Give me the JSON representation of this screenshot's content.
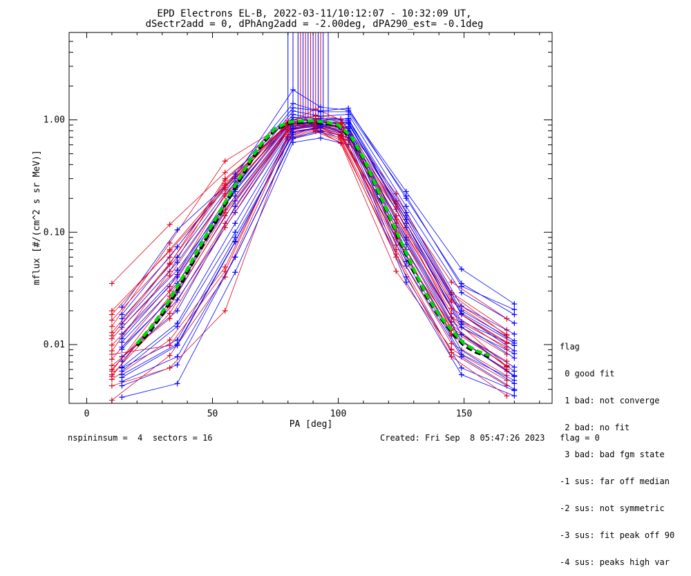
{
  "chart_data": {
    "type": "line",
    "title_line1": "EPD Electrons EL-B, 2022-03-11/10:12:07 - 10:32:09 UT,",
    "title_line2": "dSectr2add = 0, dPhAng2add = -2.00deg, dPA290_est=  -0.1deg",
    "xlabel": "PA [deg]",
    "ylabel": "mflux [#/(cm^2 s sr MeV)]",
    "xlim": [
      -7,
      185
    ],
    "ylim": [
      0.003,
      6.0
    ],
    "yscale": "log",
    "x_ticks": [
      0,
      50,
      100,
      150
    ],
    "x_tick_labels": [
      "0",
      "50",
      "100",
      "150"
    ],
    "y_ticks": [
      0.01,
      0.1,
      1.0
    ],
    "y_tick_labels": [
      "0.01",
      "0.10",
      "1.00"
    ],
    "colors": {
      "red": "#e0001c",
      "blue": "#0000ff",
      "green": "#00dd00",
      "black": "#000000"
    },
    "red_x": [
      10,
      33,
      55,
      80,
      91,
      101,
      123,
      145,
      167
    ],
    "blue_x": [
      14,
      36,
      59,
      82,
      93,
      104,
      127,
      149,
      170
    ],
    "red_series": [
      [
        0.0088,
        0.045,
        0.29,
        0.92,
        0.95,
        0.93,
        0.16,
        0.0175,
        0.0095
      ],
      [
        0.0054,
        0.019,
        0.12,
        0.83,
        0.92,
        0.77,
        0.077,
        0.015,
        0.0063
      ],
      [
        0.0145,
        0.08,
        0.43,
        0.95,
        1.02,
        0.89,
        0.18,
        0.028,
        0.012
      ],
      [
        0.0049,
        0.011,
        0.049,
        0.71,
        0.83,
        0.62,
        0.045,
        0.0091,
        0.0048
      ],
      [
        0.012,
        0.052,
        0.3,
        0.88,
        0.96,
        0.79,
        0.16,
        0.021,
        0.0105
      ],
      [
        0.0058,
        0.027,
        0.16,
        0.83,
        0.88,
        0.72,
        0.11,
        0.0175,
        0.0064
      ],
      [
        0.035,
        0.117,
        0.34,
        0.98,
        1.1,
        1.02,
        0.22,
        0.029,
        0.0135
      ],
      [
        0.0043,
        0.0062,
        0.02,
        0.66,
        0.79,
        0.63,
        0.064,
        0.0085,
        0.0043
      ],
      [
        0.0099,
        0.033,
        0.22,
        0.89,
        0.92,
        0.86,
        0.12,
        0.016,
        0.0082
      ],
      [
        0.0074,
        0.03,
        0.18,
        0.86,
        0.94,
        0.78,
        0.098,
        0.014,
        0.0071
      ],
      [
        0.0165,
        0.06,
        0.27,
        0.91,
        1.03,
        0.92,
        0.14,
        0.024,
        0.0115
      ],
      [
        0.0065,
        0.017,
        0.11,
        0.79,
        0.84,
        0.73,
        0.09,
        0.012,
        0.006
      ],
      [
        0.02,
        0.068,
        0.24,
        0.93,
        1.25,
        1.0,
        0.19,
        0.036,
        0.017
      ],
      [
        0.0032,
        0.008,
        0.04,
        0.69,
        0.81,
        0.66,
        0.06,
        0.0078,
        0.0035
      ],
      [
        0.0113,
        0.041,
        0.21,
        0.89,
        0.9,
        0.85,
        0.14,
        0.019,
        0.0091
      ],
      [
        0.0052,
        0.024,
        0.15,
        0.82,
        0.9,
        0.71,
        0.087,
        0.0125,
        0.0058
      ],
      [
        0.0128,
        0.053,
        0.25,
        0.91,
        0.98,
        0.87,
        0.13,
        0.021,
        0.0102
      ],
      [
        0.0082,
        0.0098,
        0.045,
        0.74,
        0.86,
        0.68,
        0.07,
        0.0102,
        0.0053
      ],
      [
        0.0185,
        0.07,
        0.26,
        0.94,
        1.08,
        0.95,
        0.17,
        0.025,
        0.0123
      ],
      [
        0.006,
        0.022,
        0.14,
        0.8,
        0.89,
        0.74,
        0.1,
        0.0135,
        0.0065
      ]
    ],
    "blue_series": [
      [
        0.0091,
        0.03,
        0.25,
        1.12,
        1.0,
        1.03,
        0.12,
        0.016,
        0.0098
      ],
      [
        0.0062,
        0.011,
        0.09,
        0.74,
        0.89,
        0.79,
        0.07,
        0.0108,
        0.0052
      ],
      [
        0.017,
        0.06,
        0.3,
        1.28,
        1.2,
        1.27,
        0.2,
        0.035,
        0.0185
      ],
      [
        0.0043,
        0.0066,
        0.06,
        0.68,
        0.78,
        0.66,
        0.04,
        0.0062,
        0.0039
      ],
      [
        0.0124,
        0.042,
        0.26,
        1.05,
        0.97,
        0.94,
        0.13,
        0.019,
        0.0103
      ],
      [
        0.0071,
        0.025,
        0.15,
        0.87,
        0.92,
        0.84,
        0.085,
        0.0123,
        0.0063
      ],
      [
        0.0215,
        0.105,
        0.31,
        1.85,
        1.3,
        1.22,
        0.23,
        0.047,
        0.023
      ],
      [
        0.0034,
        0.0045,
        0.044,
        0.63,
        0.69,
        0.6,
        0.036,
        0.0054,
        0.0035
      ],
      [
        0.0105,
        0.035,
        0.21,
        0.95,
        0.94,
        0.92,
        0.13,
        0.0185,
        0.0088
      ],
      [
        0.0078,
        0.02,
        0.17,
        0.92,
        0.91,
        0.87,
        0.11,
        0.0152,
        0.0076
      ],
      [
        0.0153,
        0.054,
        0.28,
        1.2,
        1.08,
        1.12,
        0.17,
        0.029,
        0.0155
      ],
      [
        0.0054,
        0.0101,
        0.083,
        0.77,
        0.85,
        0.73,
        0.063,
        0.0089,
        0.0045
      ],
      [
        0.0142,
        0.046,
        0.23,
        1.05,
        1.03,
        1.02,
        0.15,
        0.022,
        0.0124
      ],
      [
        0.0047,
        0.0078,
        0.06,
        0.7,
        0.8,
        0.7,
        0.05,
        0.0078,
        0.004
      ],
      [
        0.0095,
        0.029,
        0.19,
        0.92,
        0.95,
        0.96,
        0.12,
        0.0142,
        0.0083
      ],
      [
        0.0063,
        0.0155,
        0.12,
        0.85,
        0.91,
        0.85,
        0.09,
        0.0123,
        0.0058
      ],
      [
        0.0185,
        0.074,
        0.33,
        1.4,
        1.18,
        1.18,
        0.21,
        0.033,
        0.0205
      ],
      [
        0.0051,
        0.0098,
        0.082,
        0.78,
        0.86,
        0.77,
        0.055,
        0.0082,
        0.0048
      ],
      [
        0.0113,
        0.04,
        0.24,
        1.0,
        1.0,
        0.99,
        0.14,
        0.02,
        0.0108
      ],
      [
        0.0058,
        0.0145,
        0.1,
        0.83,
        0.88,
        0.8,
        0.078,
        0.0108,
        0.0053
      ]
    ],
    "blue_spike_x": [
      80,
      82,
      84,
      86,
      88,
      90,
      92,
      94,
      96
    ],
    "red_spike_x": [
      85,
      87,
      89,
      91,
      93
    ],
    "spike_base": 1.05,
    "fit_black": {
      "x": [
        20,
        25,
        30,
        35,
        40,
        45,
        50,
        55,
        60,
        65,
        70,
        75,
        80,
        85,
        90,
        95,
        100,
        105,
        110,
        115,
        120,
        125,
        130,
        135,
        140,
        145,
        150,
        155,
        160
      ],
      "y": [
        0.0098,
        0.013,
        0.0185,
        0.028,
        0.044,
        0.07,
        0.11,
        0.175,
        0.27,
        0.42,
        0.62,
        0.82,
        0.93,
        0.96,
        0.96,
        0.94,
        0.88,
        0.7,
        0.44,
        0.25,
        0.14,
        0.078,
        0.045,
        0.027,
        0.018,
        0.013,
        0.0098,
        0.0085,
        0.0078
      ]
    },
    "fit_green": {
      "x": [
        20,
        25,
        30,
        35,
        40,
        45,
        50,
        55,
        60,
        65,
        70,
        75,
        80,
        85,
        90,
        95,
        100,
        105,
        110,
        115,
        120,
        125,
        130,
        135,
        140,
        145,
        150,
        155,
        160
      ],
      "y": [
        0.0102,
        0.0138,
        0.0195,
        0.03,
        0.047,
        0.075,
        0.118,
        0.185,
        0.285,
        0.44,
        0.64,
        0.84,
        0.95,
        0.98,
        0.98,
        0.96,
        0.9,
        0.72,
        0.46,
        0.26,
        0.145,
        0.082,
        0.047,
        0.028,
        0.0185,
        0.0135,
        0.0102,
        0.0088,
        0.008
      ]
    }
  },
  "legend": {
    "title": "flag",
    "items": [
      " 0 good fit",
      " 1 bad: not converge",
      " 2 bad: no fit",
      " 3 bad: bad fgm state",
      "-1 sus: far off median",
      "-2 sus: not symmetric",
      "-3 sus: fit peak off 90",
      "-4 sus: peaks high var"
    ]
  },
  "footer": {
    "left": "nspininsum =  4  sectors = 16",
    "right": "Created: Fri Sep  8 05:47:26 2023   flag = 0"
  }
}
